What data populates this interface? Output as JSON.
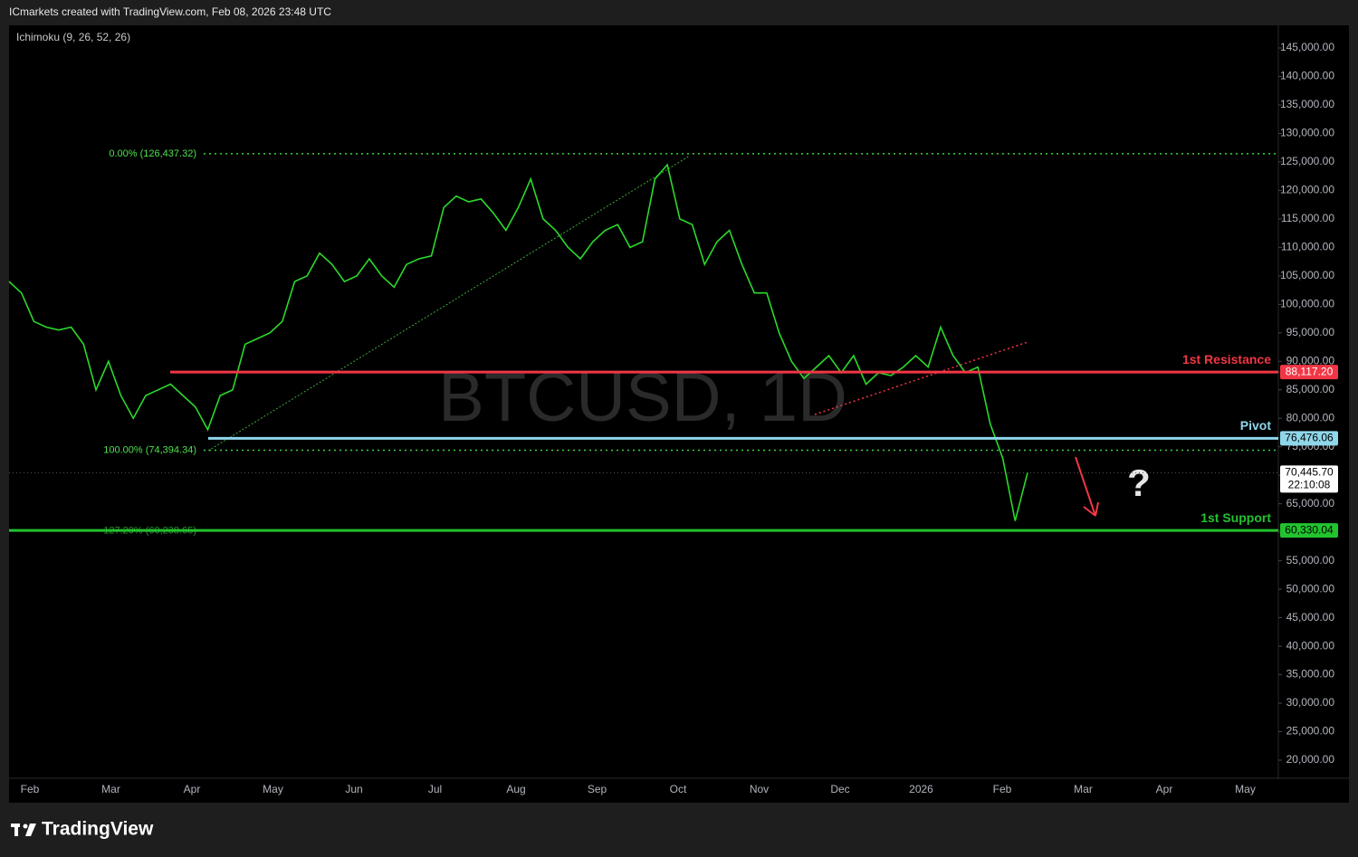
{
  "header": "ICmarkets created with TradingView.com, Feb 08, 2026 23:48 UTC",
  "brand": "TradingView",
  "chart_data": {
    "type": "line",
    "watermark": "BTCUSD, 1D",
    "indicator": "Ichimoku (9, 26, 52, 26)",
    "month_labels": [
      "Feb",
      "Mar",
      "Apr",
      "May",
      "Jun",
      "Jul",
      "Aug",
      "Sep",
      "Oct",
      "Nov",
      "Dec",
      "2026",
      "Feb",
      "Mar",
      "Apr",
      "May"
    ],
    "values": [
      104000,
      102000,
      97000,
      96000,
      95500,
      96000,
      93000,
      85000,
      90000,
      84000,
      80000,
      84000,
      85000,
      86000,
      84000,
      82000,
      78000,
      84000,
      85000,
      93000,
      94000,
      95000,
      97000,
      104000,
      105000,
      109000,
      107000,
      104000,
      105000,
      108000,
      105000,
      103000,
      107000,
      108000,
      108500,
      117000,
      119000,
      118000,
      118500,
      116000,
      113000,
      117000,
      122000,
      115000,
      113000,
      110000,
      108000,
      111000,
      113000,
      114000,
      110000,
      111000,
      122000,
      124500,
      115000,
      114000,
      107000,
      111000,
      113000,
      107000,
      102000,
      102000,
      95000,
      90000,
      87000,
      89000,
      91000,
      88000,
      91000,
      86000,
      88000,
      87500,
      89000,
      91000,
      89000,
      96000,
      91000,
      88000,
      89000,
      79000,
      73000,
      62000,
      70445.7
    ],
    "color": "#2bd92b",
    "last": {
      "value": 70445.7,
      "label": "70,445.70",
      "countdown": "22:10:08"
    },
    "ylim": [
      16823,
      148971
    ],
    "yticks": [
      {
        "value": 20000,
        "label": "20,000.00"
      },
      {
        "value": 25000,
        "label": "25,000.00"
      },
      {
        "value": 30000,
        "label": "30,000.00"
      },
      {
        "value": 35000,
        "label": "35,000.00"
      },
      {
        "value": 40000,
        "label": "40,000.00"
      },
      {
        "value": 45000,
        "label": "45,000.00"
      },
      {
        "value": 50000,
        "label": "50,000.00"
      },
      {
        "value": 55000,
        "label": "55,000.00"
      },
      {
        "value": 60000,
        "label": "60,000.00"
      },
      {
        "value": 65000,
        "label": "65,000.00"
      },
      {
        "value": 70000,
        "label": "70,000.00"
      },
      {
        "value": 75000,
        "label": "75,000.00"
      },
      {
        "value": 80000,
        "label": "80,000.00"
      },
      {
        "value": 85000,
        "label": "85,000.00"
      },
      {
        "value": 90000,
        "label": "90,000.00"
      },
      {
        "value": 95000,
        "label": "95,000.00"
      },
      {
        "value": 100000,
        "label": "100,000.00"
      },
      {
        "value": 105000,
        "label": "105,000.00"
      },
      {
        "value": 110000,
        "label": "110,000.00"
      },
      {
        "value": 115000,
        "label": "115,000.00"
      },
      {
        "value": 120000,
        "label": "120,000.00"
      },
      {
        "value": 125000,
        "label": "125,000.00"
      },
      {
        "value": 130000,
        "label": "130,000.00"
      },
      {
        "value": 135000,
        "label": "135,000.00"
      },
      {
        "value": 140000,
        "label": "140,000.00"
      },
      {
        "value": 145000,
        "label": "145,000.00"
      }
    ],
    "levels": [
      {
        "name": "1st Resistance",
        "value": 88117.2,
        "label": "88,117.20",
        "color": "#f23645"
      },
      {
        "name": "Pivot",
        "value": 76476.06,
        "label": "76,476.06",
        "color": "#8fd6ea"
      },
      {
        "name": "1st Support",
        "value": 60330.04,
        "label": "60,330.04",
        "color": "#22c32e"
      }
    ],
    "fib": [
      {
        "value": 126437.32,
        "label": "0.00% (126,437.32)"
      },
      {
        "value": 74394.34,
        "label": "100.00% (74,394.34)"
      },
      {
        "value": 60238.65,
        "label": "127.20% (60,238.65)"
      }
    ],
    "annotation": "?"
  }
}
